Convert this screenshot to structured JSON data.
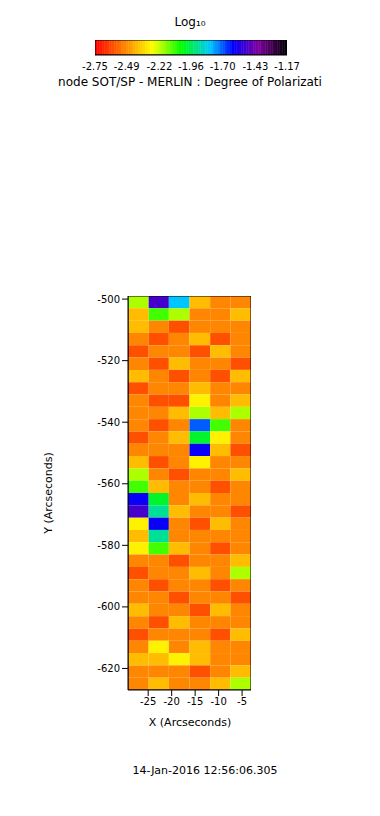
{
  "chart_data": {
    "type": "heatmap",
    "title": "node SOT/SP - MERLIN : Degree of Polarizati",
    "x_label": "X (Arcseconds)",
    "y_label": "Y (Arcseconds)",
    "date": "14-Jan-2016 12:56:06.305",
    "xlim": [
      -29.3,
      -3.1
    ],
    "xticks": [
      -25,
      -20,
      -15,
      -10,
      -5
    ],
    "ylim": [
      -627,
      -499
    ],
    "yticks": [
      -620,
      -600,
      -580,
      -560,
      -540,
      -520,
      -500
    ],
    "cells": {
      "x_edges": [
        -29.3,
        -24.9,
        -20.6,
        -16.2,
        -11.8,
        -7.5,
        -3.1
      ],
      "y_edges": [
        -499,
        -503,
        -507,
        -511,
        -515,
        -519,
        -523,
        -527,
        -531,
        -535,
        -539,
        -543,
        -547,
        -551,
        -555,
        -559,
        -563,
        -567,
        -571,
        -575,
        -579,
        -583,
        -587,
        -591,
        -595,
        -599,
        -603,
        -607,
        -611,
        -615,
        -619,
        -623,
        -627
      ],
      "z": [
        [
          -2.2,
          -1.5,
          -1.8,
          -2.4,
          -2.5,
          -2.5
        ],
        [
          -2.4,
          -2.1,
          -2.2,
          -2.5,
          -2.5,
          -2.4
        ],
        [
          -2.4,
          -2.5,
          -2.6,
          -2.5,
          -2.5,
          -2.5
        ],
        [
          -2.5,
          -2.6,
          -2.5,
          -2.4,
          -2.6,
          -2.5
        ],
        [
          -2.6,
          -2.5,
          -2.5,
          -2.6,
          -2.4,
          -2.5
        ],
        [
          -2.5,
          -2.6,
          -2.4,
          -2.5,
          -2.5,
          -2.6
        ],
        [
          -2.4,
          -2.5,
          -2.6,
          -2.5,
          -2.6,
          -2.4
        ],
        [
          -2.6,
          -2.5,
          -2.5,
          -2.4,
          -2.5,
          -2.5
        ],
        [
          -2.5,
          -2.6,
          -2.6,
          -2.3,
          -2.5,
          -2.4
        ],
        [
          -2.5,
          -2.5,
          -2.4,
          -2.2,
          -2.4,
          -2.2
        ],
        [
          -2.5,
          -2.6,
          -2.5,
          -1.7,
          -2.1,
          -2.5
        ],
        [
          -2.6,
          -2.5,
          -2.4,
          -2.0,
          -2.3,
          -2.5
        ],
        [
          -2.5,
          -2.5,
          -2.5,
          -1.6,
          -2.4,
          -2.6
        ],
        [
          -2.4,
          -2.6,
          -2.5,
          -2.3,
          -2.5,
          -2.5
        ],
        [
          -2.2,
          -2.5,
          -2.6,
          -2.5,
          -2.5,
          -2.4
        ],
        [
          -2.1,
          -2.4,
          -2.5,
          -2.5,
          -2.6,
          -2.5
        ],
        [
          -1.6,
          -2.0,
          -2.5,
          -2.4,
          -2.5,
          -2.5
        ],
        [
          -1.5,
          -1.9,
          -2.4,
          -2.5,
          -2.5,
          -2.6
        ],
        [
          -2.3,
          -1.6,
          -2.5,
          -2.6,
          -2.4,
          -2.5
        ],
        [
          -2.4,
          -1.9,
          -2.5,
          -2.5,
          -2.5,
          -2.5
        ],
        [
          -2.3,
          -2.1,
          -2.4,
          -2.5,
          -2.6,
          -2.5
        ],
        [
          -2.5,
          -2.5,
          -2.6,
          -2.5,
          -2.5,
          -2.4
        ],
        [
          -2.6,
          -2.5,
          -2.5,
          -2.4,
          -2.5,
          -2.2
        ],
        [
          -2.5,
          -2.6,
          -2.5,
          -2.5,
          -2.6,
          -2.5
        ],
        [
          -2.5,
          -2.5,
          -2.6,
          -2.5,
          -2.5,
          -2.6
        ],
        [
          -2.4,
          -2.5,
          -2.5,
          -2.6,
          -2.4,
          -2.5
        ],
        [
          -2.5,
          -2.6,
          -2.4,
          -2.5,
          -2.5,
          -2.5
        ],
        [
          -2.6,
          -2.5,
          -2.5,
          -2.5,
          -2.6,
          -2.4
        ],
        [
          -2.5,
          -2.3,
          -2.5,
          -2.4,
          -2.5,
          -2.5
        ],
        [
          -2.4,
          -2.4,
          -2.3,
          -2.4,
          -2.5,
          -2.5
        ],
        [
          -2.5,
          -2.5,
          -2.5,
          -2.6,
          -2.5,
          -2.4
        ],
        [
          -2.5,
          -2.4,
          -2.5,
          -2.5,
          -2.4,
          -2.2
        ]
      ]
    },
    "colorbar": {
      "label": "Log₁₀",
      "range": [
        -2.75,
        -1.17
      ],
      "ticks": [
        -2.75,
        -2.49,
        -2.22,
        -1.96,
        {
          "value": -1.7,
          "label": "-1.70"
        },
        -1.43,
        -1.17
      ]
    }
  }
}
